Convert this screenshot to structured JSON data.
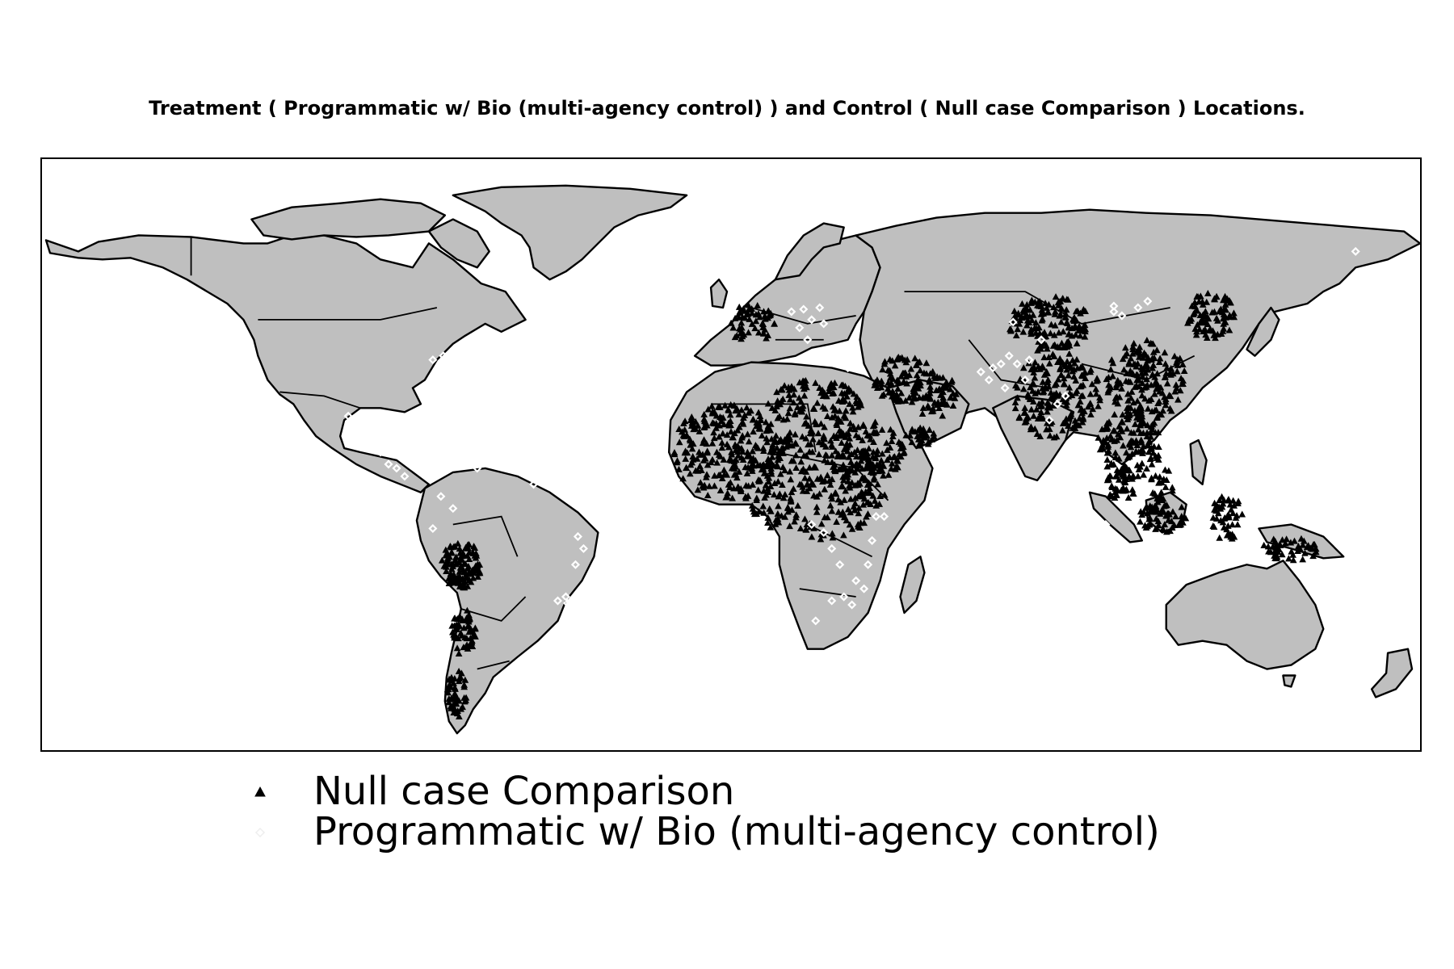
{
  "title": "Treatment ( Programmatic w/ Bio (multi-agency control) ) and Control ( Null case Comparison ) Locations.",
  "colors": {
    "land": "#bfbfbf",
    "coastline": "#000000",
    "control_marker": "#000000",
    "treatment_marker": "#ffffff"
  },
  "legend": {
    "control": {
      "label": "Null case Comparison",
      "marker": "triangle-icon"
    },
    "treatment": {
      "label": "Programmatic w/ Bio (multi-agency control)",
      "marker": "diamond-icon"
    }
  }
}
